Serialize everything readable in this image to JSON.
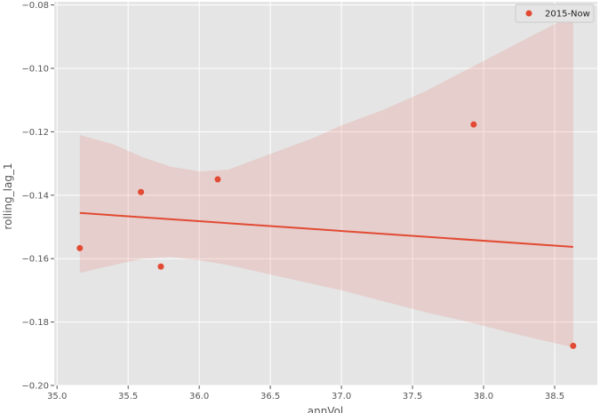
{
  "chart_data": {
    "type": "scatter",
    "xlabel": "annVol",
    "ylabel": "rolling_lag_1",
    "xlim": [
      34.98,
      38.8
    ],
    "ylim": [
      -0.2,
      -0.079
    ],
    "x_ticks": [
      35.0,
      35.5,
      36.0,
      36.5,
      37.0,
      37.5,
      38.0,
      38.5
    ],
    "x_tick_labels": [
      "35.0",
      "35.5",
      "36.0",
      "36.5",
      "37.0",
      "37.5",
      "38.0",
      "38.5"
    ],
    "y_ticks": [
      -0.2,
      -0.18,
      -0.16,
      -0.14,
      -0.12,
      -0.1,
      -0.08
    ],
    "y_tick_labels": [
      "−0.20",
      "−0.18",
      "−0.16",
      "−0.14",
      "−0.12",
      "−0.10",
      "−0.08"
    ],
    "grid": true,
    "legend_position": "top-right",
    "series": [
      {
        "name": "2015-Now",
        "color": "#e24a33",
        "points": [
          {
            "x": 35.16,
            "y": -0.1567
          },
          {
            "x": 35.59,
            "y": -0.139
          },
          {
            "x": 35.73,
            "y": -0.1625
          },
          {
            "x": 36.13,
            "y": -0.135
          },
          {
            "x": 37.93,
            "y": -0.1177
          },
          {
            "x": 38.63,
            "y": -0.1875
          }
        ]
      }
    ],
    "regression_line": {
      "color": "#e24a33",
      "x": [
        35.16,
        38.63
      ],
      "y": [
        -0.1456,
        -0.1563
      ]
    },
    "confidence_band": {
      "color": "#e24a33",
      "x": [
        35.16,
        35.4,
        35.6,
        35.8,
        36.0,
        36.2,
        36.5,
        36.8,
        37.0,
        37.3,
        37.6,
        37.9,
        38.2,
        38.63
      ],
      "upper": [
        -0.121,
        -0.124,
        -0.128,
        -0.131,
        -0.1325,
        -0.132,
        -0.127,
        -0.122,
        -0.118,
        -0.113,
        -0.107,
        -0.1,
        -0.093,
        -0.083
      ],
      "lower": [
        -0.1645,
        -0.162,
        -0.16,
        -0.1595,
        -0.1605,
        -0.162,
        -0.165,
        -0.168,
        -0.17,
        -0.1735,
        -0.177,
        -0.18,
        -0.1835,
        -0.188
      ]
    }
  }
}
